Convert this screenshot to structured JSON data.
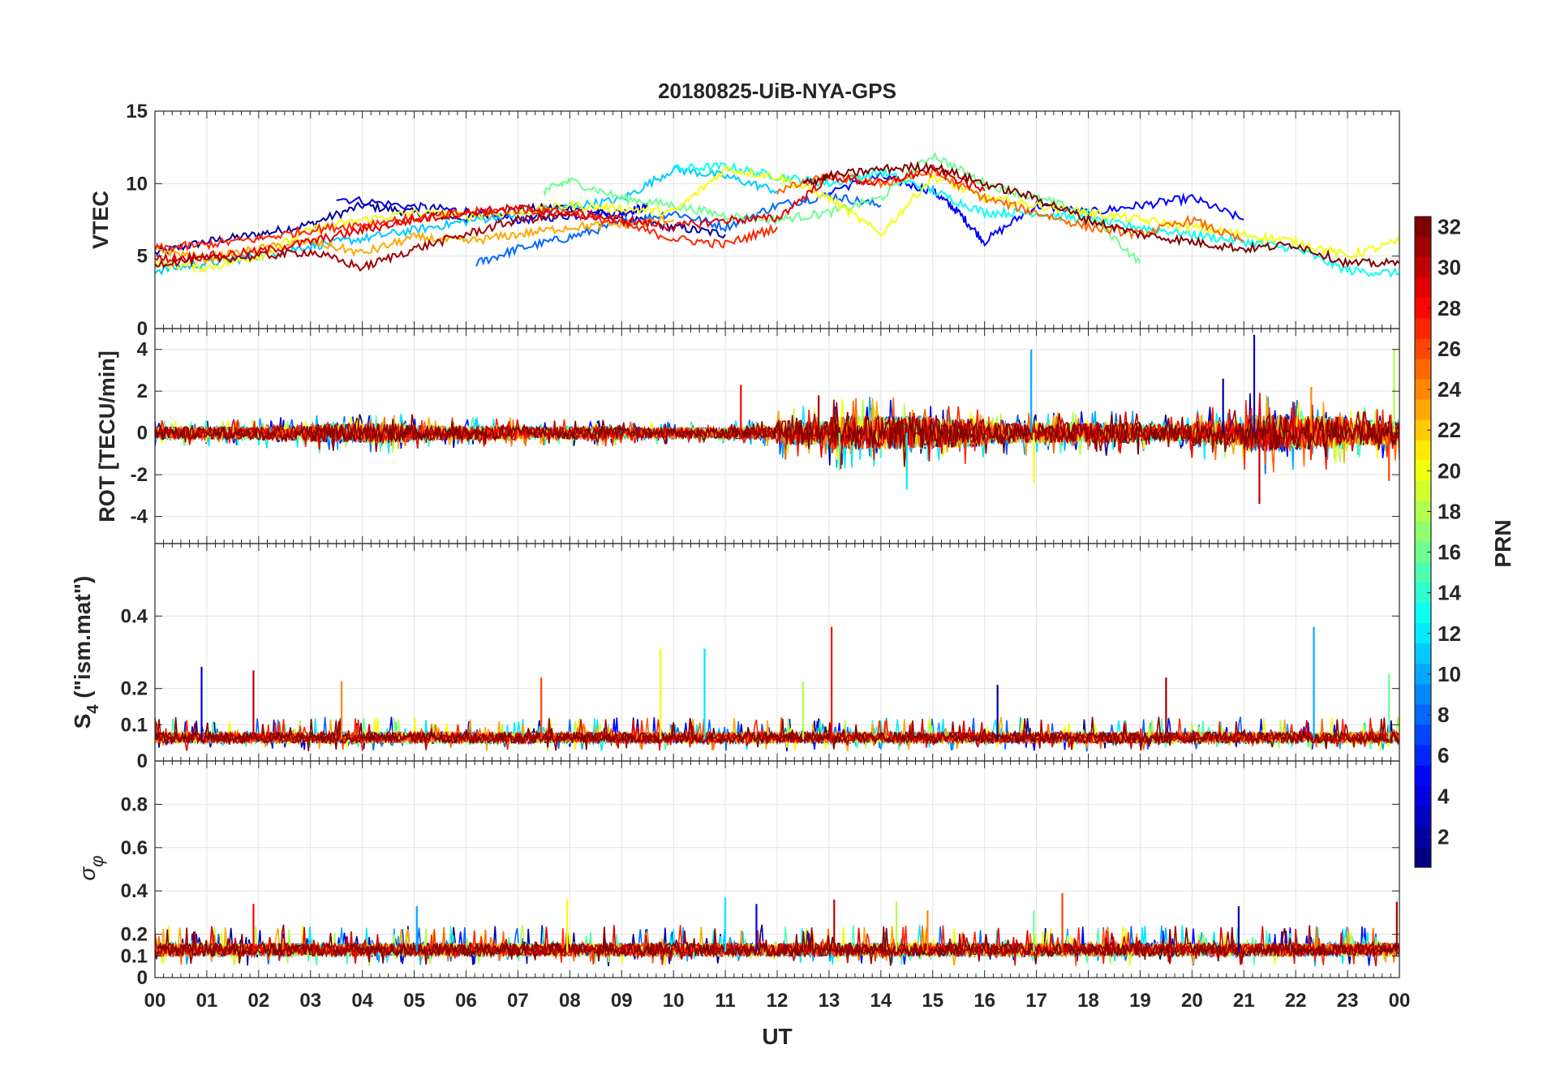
{
  "figure": {
    "title": "20180825-UiB-NYA-GPS",
    "xlabel": "UT"
  },
  "colorbar": {
    "label": "PRN",
    "range": [
      1,
      32
    ],
    "ticks": [
      2,
      4,
      6,
      8,
      10,
      12,
      14,
      16,
      18,
      20,
      22,
      24,
      26,
      28,
      30,
      32
    ],
    "colormap": "jet"
  },
  "chart_data": [
    {
      "type": "line",
      "panel": "vtec",
      "ylabel": "VTEC",
      "ylim": [
        0,
        15
      ],
      "yticks": [
        "0",
        "5",
        "10",
        "15"
      ],
      "yticks_values": [
        0,
        5,
        10,
        15
      ],
      "xlim": [
        0,
        24
      ],
      "xticks": [
        "00",
        "01",
        "02",
        "03",
        "04",
        "05",
        "06",
        "07",
        "08",
        "09",
        "10",
        "11",
        "12",
        "13",
        "14",
        "15",
        "16",
        "17",
        "18",
        "19",
        "20",
        "21",
        "22",
        "23",
        "00"
      ],
      "grid": true,
      "series_color_by": "PRN",
      "series": [
        {
          "prn": 2,
          "x": [
            0,
            1,
            2,
            3,
            4,
            5,
            6,
            7,
            8,
            9,
            10,
            11
          ],
          "y": [
            5.2,
            6.0,
            6.5,
            7.2,
            8.5,
            8.0,
            7.6,
            8.2,
            8.4,
            7.6,
            7.0,
            6.5
          ]
        },
        {
          "prn": 4,
          "x": [
            3.5,
            5,
            6,
            7,
            8,
            9,
            9.5
          ],
          "y": [
            9.0,
            8.4,
            8.1,
            7.5,
            7.8,
            8.0,
            8.4
          ]
        },
        {
          "prn": 5,
          "x": [
            13,
            14,
            15,
            15.5,
            16,
            17,
            18,
            19,
            20,
            21
          ],
          "y": [
            9.5,
            10.5,
            9.5,
            8.0,
            6.0,
            8.5,
            8.0,
            8.5,
            9.0,
            7.5
          ]
        },
        {
          "prn": 8,
          "x": [
            6.2,
            7,
            8,
            9,
            10,
            11,
            12,
            13,
            14
          ],
          "y": [
            4.5,
            5.5,
            6.3,
            7.3,
            8.0,
            7.0,
            8.5,
            9.2,
            8.5
          ]
        },
        {
          "prn": 11,
          "x": [
            0,
            1,
            2,
            3,
            4,
            5,
            6,
            7,
            8,
            9,
            10,
            11,
            12
          ],
          "y": [
            4.0,
            4.5,
            5.0,
            5.7,
            6.2,
            6.8,
            7.4,
            7.9,
            8.4,
            8.9,
            11.0,
            10.5,
            9.5
          ]
        },
        {
          "prn": 13,
          "x": [
            10,
            11,
            12,
            13,
            14,
            15,
            16,
            17,
            18,
            19,
            20,
            21,
            22,
            23,
            24
          ],
          "y": [
            11.0,
            11.2,
            10.5,
            10.0,
            10.8,
            9.5,
            8.0,
            8.0,
            7.5,
            7.0,
            6.5,
            6.0,
            5.5,
            4.0,
            3.8
          ]
        },
        {
          "prn": 16,
          "x": [
            7.5,
            8,
            9,
            10,
            11,
            12,
            13,
            14,
            15,
            16,
            17,
            18,
            19
          ],
          "y": [
            9.5,
            10.2,
            9.0,
            8.5,
            7.8,
            7.5,
            8.0,
            9.0,
            12.0,
            10.0,
            9.0,
            8.0,
            4.5
          ]
        },
        {
          "prn": 20,
          "x": [
            0,
            1,
            2,
            3,
            4,
            5,
            6,
            7,
            8,
            9,
            10,
            11,
            12,
            13,
            14,
            15,
            16,
            17,
            18,
            19,
            20,
            21,
            22,
            23,
            24
          ],
          "y": [
            4.5,
            4.2,
            5.0,
            6.8,
            7.5,
            8.0,
            7.8,
            8.0,
            8.5,
            8.3,
            8.0,
            11.0,
            10.5,
            9.0,
            6.5,
            10.5,
            9.0,
            8.5,
            8.0,
            7.5,
            7.0,
            6.5,
            6.0,
            5.0,
            6.0
          ]
        },
        {
          "prn": 23,
          "x": [
            0,
            1,
            2,
            3,
            4,
            5,
            6,
            7,
            8,
            9,
            10
          ],
          "y": [
            5.5,
            4.8,
            5.5,
            6.0,
            5.2,
            6.3,
            6.0,
            6.5,
            7.0,
            7.2,
            7.5
          ]
        },
        {
          "prn": 25,
          "x": [
            12,
            13,
            14,
            15,
            16,
            17,
            18,
            19,
            20,
            21
          ],
          "y": [
            9.5,
            10.5,
            10.0,
            10.8,
            9.0,
            8.0,
            7.0,
            6.5,
            7.5,
            6.0
          ]
        },
        {
          "prn": 27,
          "x": [
            0,
            1,
            2,
            3,
            4,
            5,
            6,
            7,
            8,
            9,
            10,
            11,
            12
          ],
          "y": [
            5.5,
            5.8,
            6.2,
            6.8,
            7.2,
            7.6,
            8.0,
            8.2,
            8.0,
            7.2,
            6.2,
            5.8,
            7.0
          ]
        },
        {
          "prn": 29,
          "x": [
            0,
            1,
            2,
            3,
            4,
            5,
            6,
            7,
            8,
            9,
            10,
            11,
            12,
            13,
            14,
            15,
            16
          ],
          "y": [
            4.8,
            5.0,
            5.3,
            6.0,
            6.8,
            7.5,
            8.0,
            8.3,
            8.0,
            7.5,
            7.0,
            7.5,
            7.6,
            10.5,
            10.0,
            11.0,
            9.5
          ]
        },
        {
          "prn": 31,
          "x": [
            0,
            1,
            2,
            3,
            4,
            5,
            6,
            7,
            8
          ],
          "y": [
            4.5,
            4.8,
            5.0,
            5.3,
            4.2,
            5.5,
            6.5,
            7.5,
            7.8
          ]
        },
        {
          "prn": 32,
          "x": [
            12.5,
            13,
            14,
            15,
            16,
            17,
            18,
            19,
            20,
            21,
            22,
            23,
            24
          ],
          "y": [
            10.0,
            10.5,
            11.0,
            11.2,
            10.0,
            9.0,
            7.5,
            6.5,
            6.0,
            5.5,
            5.8,
            4.5,
            4.5
          ]
        }
      ]
    },
    {
      "type": "line",
      "panel": "rot",
      "ylabel": "ROT [TECU/min]",
      "ylim": [
        -5.3,
        5
      ],
      "yticks": [
        "-4",
        "-2",
        "0",
        "2",
        "4"
      ],
      "yticks_values": [
        -4,
        -2,
        0,
        2,
        4
      ],
      "xlim": [
        0,
        24
      ],
      "grid": true,
      "baseline": 0,
      "noise_by_hour": [
        0.3,
        0.3,
        0.35,
        0.45,
        0.45,
        0.35,
        0.35,
        0.3,
        0.3,
        0.25,
        0.25,
        0.3,
        0.6,
        0.8,
        0.8,
        0.7,
        0.5,
        0.5,
        0.5,
        0.4,
        0.6,
        0.9,
        0.8,
        0.6
      ],
      "spikes": [
        {
          "x": 11.3,
          "y": 2.3
        },
        {
          "x": 16.9,
          "y": 4.0
        },
        {
          "x": 16.95,
          "y": -2.4
        },
        {
          "x": 14.5,
          "y": -2.7
        },
        {
          "x": 21.2,
          "y": 4.7
        },
        {
          "x": 21.3,
          "y": -3.4
        },
        {
          "x": 23.9,
          "y": 4.0
        },
        {
          "x": 23.8,
          "y": -2.3
        },
        {
          "x": 20.6,
          "y": 2.6
        },
        {
          "x": 12.8,
          "y": 1.8
        },
        {
          "x": 13.2,
          "y": -1.8
        },
        {
          "x": 22.3,
          "y": 2.2
        }
      ]
    },
    {
      "type": "line",
      "panel": "s4",
      "ylabel": "S4 (\"ism.mat\")",
      "ylabel_main": "S",
      "ylabel_sub": "4",
      "ylabel_rest": " (\"ism.mat\")",
      "ylim": [
        0,
        0.6
      ],
      "yticks": [
        "0",
        "0.1",
        "0.2",
        "0.4"
      ],
      "yticks_values": [
        0,
        0.1,
        0.2,
        0.4
      ],
      "xlim": [
        0,
        24
      ],
      "grid": true,
      "baseline": 0.06,
      "spikes": [
        {
          "x": 13.05,
          "y": 0.37
        },
        {
          "x": 22.35,
          "y": 0.37
        },
        {
          "x": 9.75,
          "y": 0.31
        },
        {
          "x": 10.6,
          "y": 0.31
        },
        {
          "x": 0.9,
          "y": 0.26
        },
        {
          "x": 1.9,
          "y": 0.25
        },
        {
          "x": 12.5,
          "y": 0.22
        },
        {
          "x": 7.45,
          "y": 0.23
        },
        {
          "x": 16.25,
          "y": 0.21
        },
        {
          "x": 19.5,
          "y": 0.23
        },
        {
          "x": 23.8,
          "y": 0.24
        },
        {
          "x": 3.6,
          "y": 0.22
        }
      ]
    },
    {
      "type": "line",
      "panel": "sigma_phi",
      "ylabel": "σφ",
      "ylabel_main": "σ",
      "ylabel_sub": "φ",
      "ylim": [
        0,
        1
      ],
      "yticks": [
        "0",
        "0.1",
        "0.2",
        "0.4",
        "0.6",
        "0.8"
      ],
      "yticks_values": [
        0,
        0.1,
        0.2,
        0.4,
        0.6,
        0.8
      ],
      "xlim": [
        0,
        24
      ],
      "grid": true,
      "baseline": 0.12,
      "spikes": [
        {
          "x": 1.9,
          "y": 0.34
        },
        {
          "x": 5.05,
          "y": 0.33
        },
        {
          "x": 7.95,
          "y": 0.36
        },
        {
          "x": 11.0,
          "y": 0.37
        },
        {
          "x": 11.6,
          "y": 0.34
        },
        {
          "x": 13.1,
          "y": 0.36
        },
        {
          "x": 14.3,
          "y": 0.35
        },
        {
          "x": 17.5,
          "y": 0.39
        },
        {
          "x": 20.9,
          "y": 0.33
        },
        {
          "x": 23.95,
          "y": 0.35
        },
        {
          "x": 16.95,
          "y": 0.31
        },
        {
          "x": 14.9,
          "y": 0.31
        }
      ]
    }
  ]
}
